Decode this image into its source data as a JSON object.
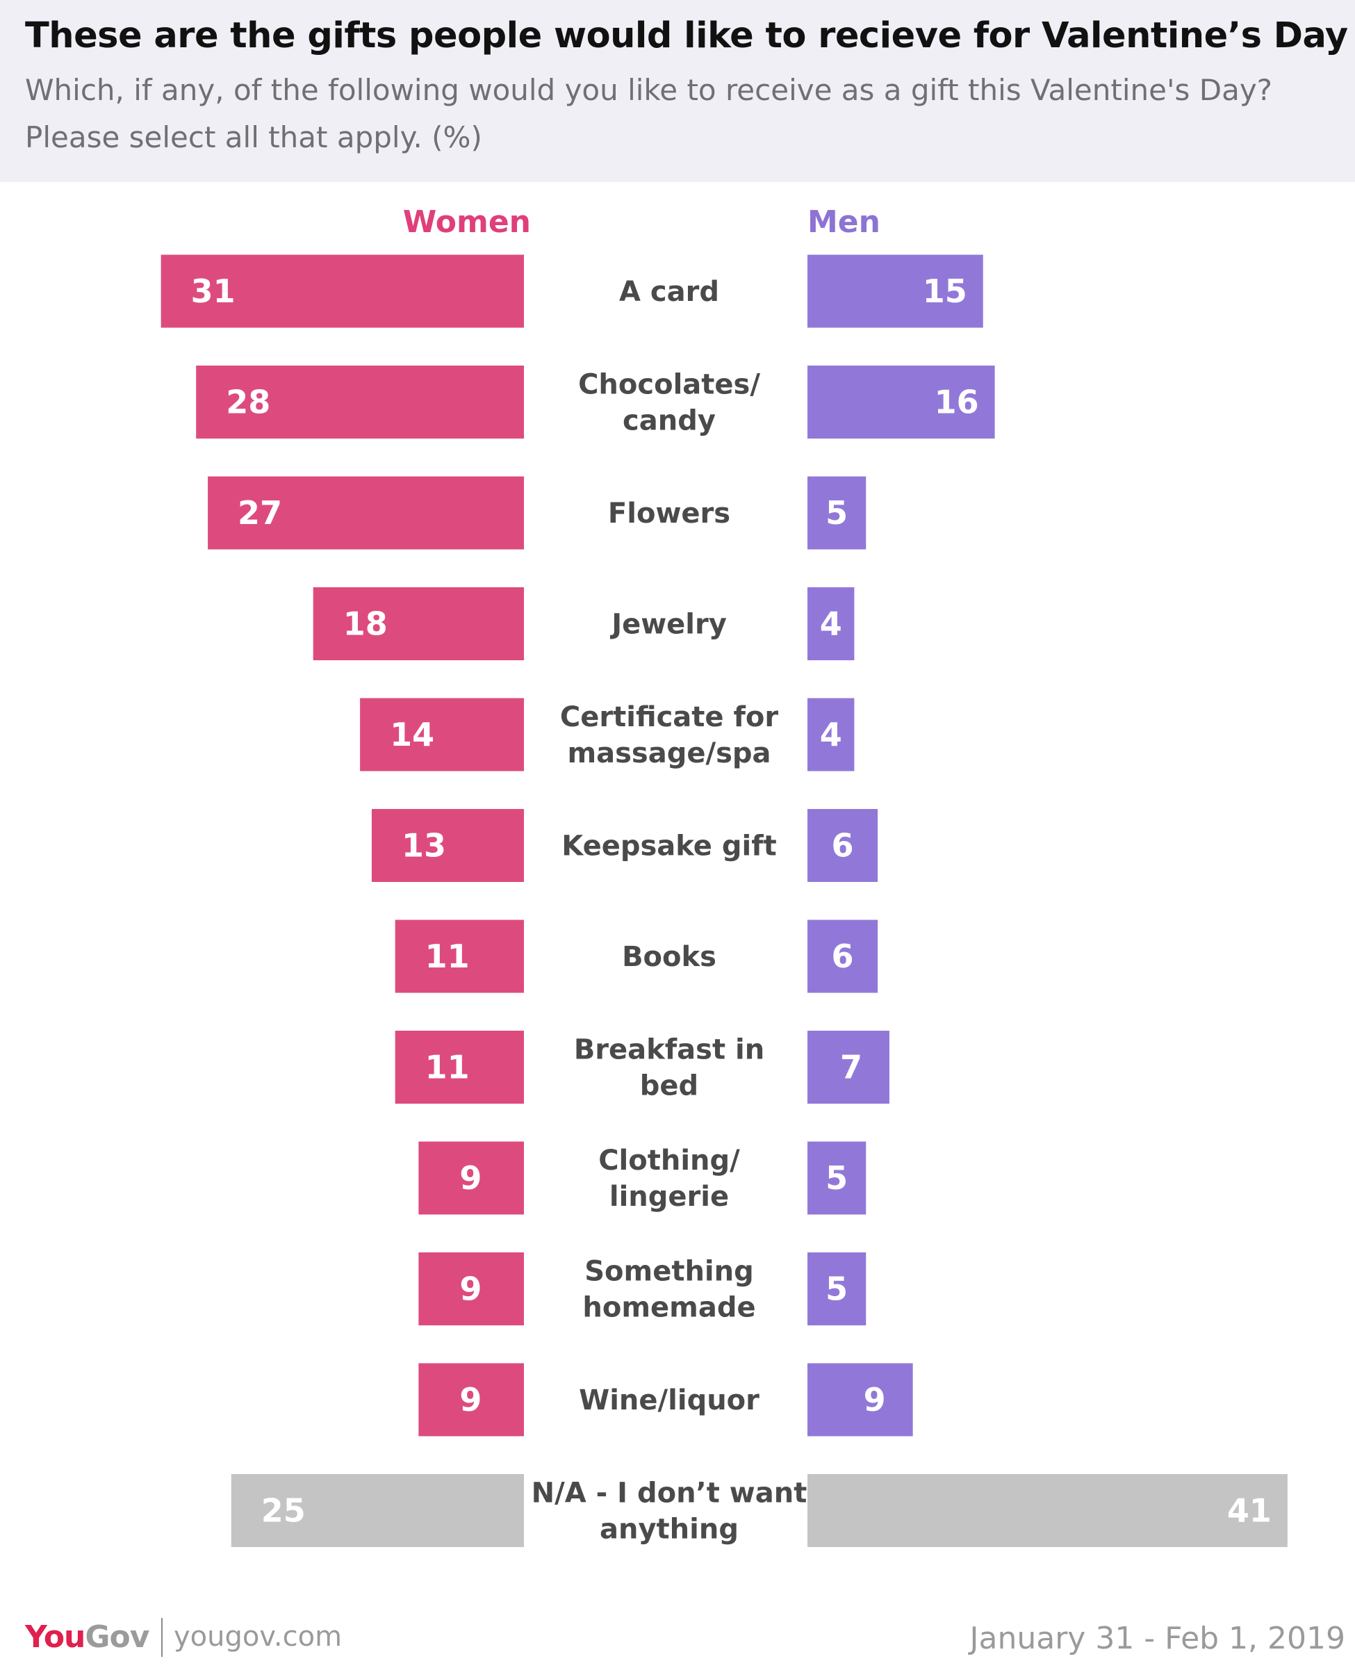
{
  "title": "These are the gifts people would like to recieve for Valentine’s Day",
  "subtitle": "Which, if any, of the following would you like to receive as a gift this Valentine's Day? Please select all that apply. (%)",
  "footer": {
    "logo_you": "You",
    "logo_gov": "Gov",
    "site": "yougov.com",
    "date": "January 31 - Feb 1, 2019"
  },
  "colors": {
    "women": "#dd4b7e",
    "men": "#9178d8",
    "na": "#c4c4c4",
    "women_title": "#df3f7a",
    "men_title": "#8d73d4"
  },
  "chart_data": {
    "type": "bar",
    "orientation": "horizontal-diverging",
    "unit": "%",
    "categories": [
      "A card",
      "Chocolates/ candy",
      "Flowers",
      "Jewelry",
      "Certificate for massage/spa",
      "Keepsake gift",
      "Books",
      "Breakfast in bed",
      "Clothing/ lingerie",
      "Something homemade",
      "Wine/liquor",
      "N/A - I don’t want anything"
    ],
    "category_lines": [
      [
        "A card"
      ],
      [
        "Chocolates/",
        "candy"
      ],
      [
        "Flowers"
      ],
      [
        "Jewelry"
      ],
      [
        "Certificate for",
        "massage/spa"
      ],
      [
        "Keepsake gift"
      ],
      [
        "Books"
      ],
      [
        "Breakfast in",
        "bed"
      ],
      [
        "Clothing/",
        "lingerie"
      ],
      [
        "Something",
        "homemade"
      ],
      [
        "Wine/liquor"
      ],
      [
        "N/A - I don’t want",
        "anything"
      ]
    ],
    "series": [
      {
        "name": "Women",
        "values": [
          31,
          28,
          27,
          18,
          14,
          13,
          11,
          11,
          9,
          9,
          9,
          25
        ]
      },
      {
        "name": "Men",
        "values": [
          15,
          16,
          5,
          4,
          4,
          6,
          6,
          7,
          5,
          5,
          9,
          41
        ]
      }
    ],
    "highlight_last_category": "N/A - I don’t want anything",
    "xlim": [
      0,
      45
    ]
  }
}
